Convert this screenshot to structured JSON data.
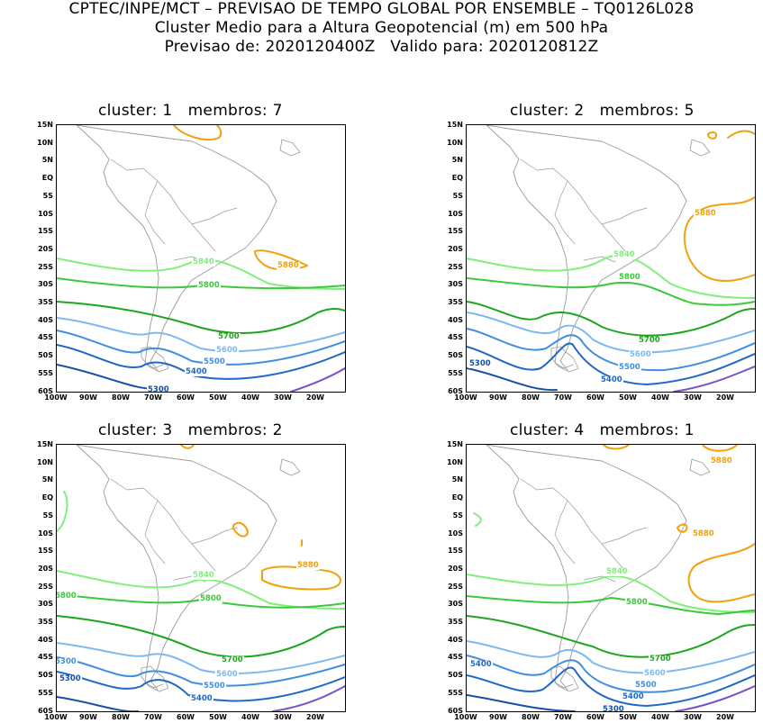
{
  "header": {
    "line1": "CPTEC/INPE/MCT – PREVISAO DE TEMPO GLOBAL POR ENSEMBLE – TQ0126L028",
    "line2": "Cluster Medio para a Altura Geopotencial (m) em 500 hPa",
    "line3": "Previsao de: 2020120400Z   Valido para: 2020120812Z"
  },
  "axes": {
    "lat_labels": [
      "15N",
      "10N",
      "5N",
      "EQ",
      "5S",
      "10S",
      "15S",
      "20S",
      "25S",
      "30S",
      "35S",
      "40S",
      "45S",
      "50S",
      "55S",
      "60S"
    ],
    "lon_labels": [
      "100W",
      "90W",
      "80W",
      "70W",
      "60W",
      "50W",
      "40W",
      "30W",
      "20W"
    ]
  },
  "colors": {
    "c5840": "#7ff07a",
    "c5800": "#3cc83a",
    "c5700": "#1ea51e",
    "c5600": "#7bb9f2",
    "c5500": "#3f8ee0",
    "c5400": "#1f68c4",
    "c5300": "#1450a8",
    "c5880": "#f2a10d",
    "purple": "#7a52c7",
    "coast": "#9a9a9a"
  },
  "panels": [
    {
      "title": "cluster: 1   membros: 7",
      "labels": {
        "l5840": "5840",
        "l5800": "5800",
        "l5700": "5700",
        "l5600": "5600",
        "l5500": "5500",
        "l5400": "5400",
        "l5300": "5300",
        "l5880": "5880"
      }
    },
    {
      "title": "cluster: 2   membros: 5",
      "labels": {
        "l5840": "5840",
        "l5800": "5800",
        "l5700": "5700",
        "l5600": "5600",
        "l5500": "5500",
        "l5400": "5400",
        "l5300": "5300",
        "l5880": "5880"
      }
    },
    {
      "title": "cluster: 3   membros: 2",
      "labels": {
        "l5840": "5840",
        "l5800": "5800",
        "l5800w": "5800",
        "l5700": "5700",
        "l5600": "5600",
        "l5500": "5500",
        "l5400": "5400",
        "l5300": "5300",
        "l5300w": "5300",
        "l5880": "5880"
      }
    },
    {
      "title": "cluster: 4   membros: 1",
      "labels": {
        "l5840": "5840",
        "l5800": "5800",
        "l5700": "5700",
        "l5600": "5600",
        "l5500": "5500",
        "l5400": "5400",
        "l5400w": "5400",
        "l5300": "5300",
        "l5880a": "5880",
        "l5880b": "5880"
      }
    }
  ]
}
